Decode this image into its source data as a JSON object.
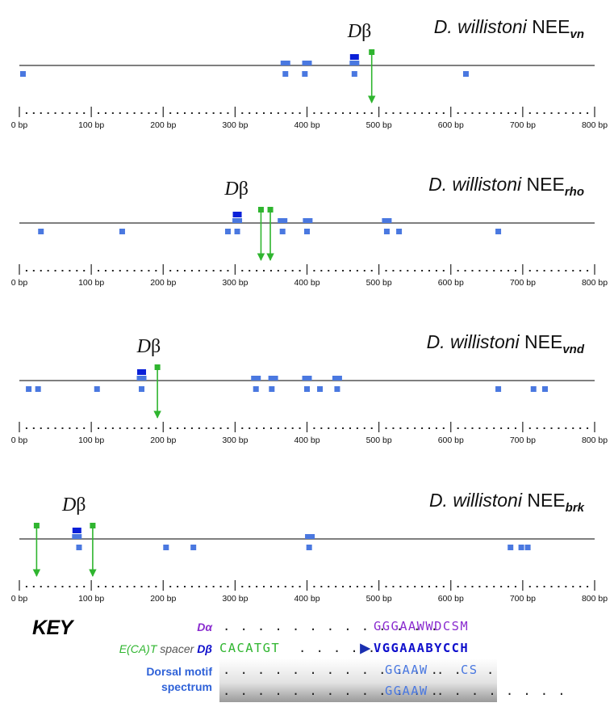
{
  "scale": {
    "max_bp": 800,
    "tick_step_bp": 100,
    "tick_labels": [
      "0 bp",
      "100 bp",
      "200 bp",
      "300 bp",
      "400 bp",
      "500 bp",
      "600 bp",
      "700 bp",
      "800 bp"
    ]
  },
  "colors": {
    "dalpha": "#8a2ccf",
    "dbeta": "#1010cc",
    "dbeta_site": "#0a20d8",
    "motif": "#4a78e0",
    "spacer": "#2fb52f",
    "axis": "#333333"
  },
  "panels": [
    {
      "species": "D. willistoni",
      "element": "NEE",
      "subscript": "vn",
      "dbeta_label": "D",
      "dbeta_greek": "β",
      "dbeta_label_bp": 473,
      "dbeta_sites_bp": [
        466
      ],
      "motif_top_bp": [
        370,
        400,
        466
      ],
      "motif_bottom_bp": [
        5,
        370,
        397,
        466,
        621
      ],
      "spacers_bp": [
        {
          "from": 490,
          "to": 490
        }
      ]
    },
    {
      "species": "D. willistoni",
      "element": "NEE",
      "subscript": "rho",
      "dbeta_label": "D",
      "dbeta_greek": "β",
      "dbeta_label_bp": 302,
      "dbeta_sites_bp": [
        303
      ],
      "motif_top_bp": [
        303,
        366,
        401,
        511
      ],
      "motif_bottom_bp": [
        30,
        143,
        290,
        303,
        366,
        400,
        511,
        528,
        666
      ],
      "spacers_bp": [
        {
          "from": 336,
          "to": 336
        },
        {
          "from": 349,
          "to": 349
        }
      ]
    },
    {
      "species": "D. willistoni",
      "element": "NEE",
      "subscript": "vnd",
      "dbeta_label": "D",
      "dbeta_greek": "β",
      "dbeta_label_bp": 180,
      "dbeta_sites_bp": [
        170
      ],
      "motif_top_bp": [
        170,
        329,
        353,
        400,
        442
      ],
      "motif_bottom_bp": [
        13,
        26,
        108,
        170,
        329,
        351,
        400,
        418,
        442,
        666,
        715,
        731
      ],
      "spacers_bp": [
        {
          "from": 192,
          "to": 192
        }
      ]
    },
    {
      "species": "D. willistoni",
      "element": "NEE",
      "subscript": "brk",
      "dbeta_label": "D",
      "dbeta_greek": "β",
      "dbeta_label_bp": 76,
      "dbeta_sites_bp": [
        80
      ],
      "motif_top_bp": [
        80,
        404
      ],
      "motif_bottom_bp": [
        83,
        204,
        242,
        403,
        683,
        698,
        707
      ],
      "spacers_bp": [
        {
          "from": 24,
          "to": 24
        },
        {
          "from": 102,
          "to": 102
        }
      ]
    }
  ],
  "key": {
    "title": "KEY",
    "dalpha_label": "Dα",
    "spacer_label_ect": "E(CA)T",
    "spacer_label_word": "spacer",
    "dbeta_key_label": "Dβ",
    "motif_label_line1": "Dorsal motif",
    "motif_label_line2": "spectrum",
    "dalpha_dots": ". . . . . . . . . . . . .",
    "dalpha_seq": "GGGAAWWDCSM",
    "spacer_seq": "CACATGT",
    "spacer_dots": ". . . . .",
    "dbeta_seq": "VGGAAABYCCH",
    "motif1_dots": ". . . . . . . . . . . . .",
    "motif1_seq": "GGAAW",
    "motif1_mid_dots": ". .",
    "motif1_tail": "CS",
    "motif1_end_dots": ".",
    "motif2_dots": ". . . . . . . . . . . . .",
    "motif2_seq": "GGAAW",
    "motif2_end_dots": ". . . . . . . ."
  }
}
